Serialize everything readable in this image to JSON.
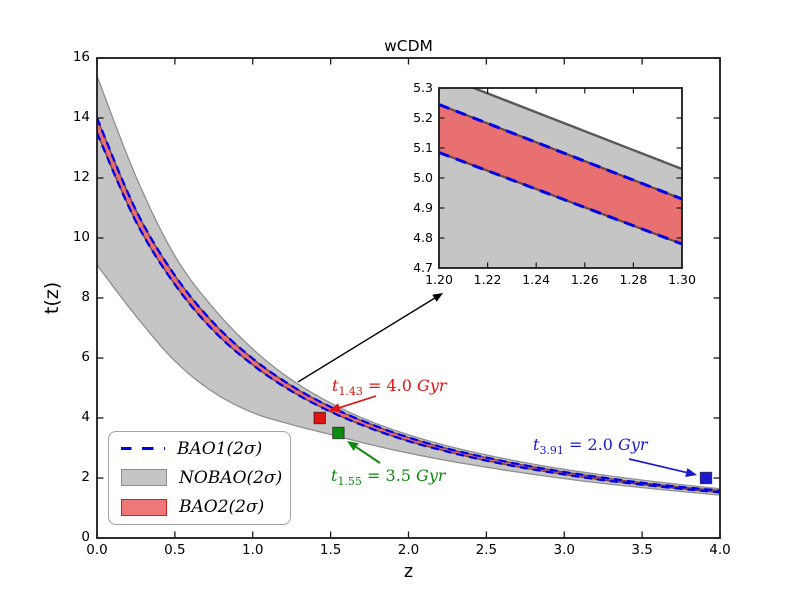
{
  "figure": {
    "title": "wCDM"
  },
  "axes": {
    "xlabel": "z",
    "ylabel": "t(z)",
    "xlim": [
      0,
      4
    ],
    "ylim": [
      0,
      16
    ],
    "xtick_labels": [
      "0.0",
      "0.5",
      "1.0",
      "1.5",
      "2.0",
      "2.5",
      "3.0",
      "3.5",
      "4.0"
    ],
    "ytick_labels": [
      "0",
      "2",
      "4",
      "6",
      "8",
      "10",
      "12",
      "14",
      "16"
    ]
  },
  "legend": {
    "position": "lower-left",
    "items": [
      {
        "label": "BAO1(2σ)",
        "type": "dashed-line",
        "color": "#0000e8"
      },
      {
        "label": "NOBAO(2σ)",
        "type": "patch",
        "fill": "#c5c5c5",
        "edge": "#8f8f8f"
      },
      {
        "label": "BAO2(2σ)",
        "type": "patch",
        "fill": "#ee7878",
        "edge": "#cc2222"
      }
    ]
  },
  "annotations": {
    "red": {
      "prefix": "t",
      "sub": "1.43",
      "eq": " = 4.0 ",
      "unit": "Gyr",
      "color": "#e11212"
    },
    "green": {
      "prefix": "t",
      "sub": "1.55",
      "eq": " = 3.5 ",
      "unit": "Gyr",
      "color": "#0e8a0e"
    },
    "blue": {
      "prefix": "t",
      "sub": "3.91",
      "eq": " = 2.0 ",
      "unit": "Gyr",
      "color": "#1a1acc"
    }
  },
  "chart_data": {
    "type": "line",
    "title": "wCDM",
    "xlabel": "z",
    "ylabel": "t(z)",
    "xlim": [
      0,
      4
    ],
    "ylim": [
      0,
      16
    ],
    "grid": false,
    "legend_position": "lower-left",
    "x": [
      0,
      0.25,
      0.5,
      0.75,
      1.0,
      1.25,
      1.5,
      1.75,
      2.0,
      2.25,
      2.5,
      2.75,
      3.0,
      3.25,
      3.5,
      3.75,
      4.0
    ],
    "series": [
      {
        "name": "NOBAO(2σ) upper bound",
        "band": "NOBAO",
        "edge": "upper",
        "values": [
          15.4,
          12.05,
          9.4,
          7.65,
          6.3,
          5.27,
          4.5,
          3.9,
          3.44,
          3.07,
          2.77,
          2.51,
          2.29,
          2.1,
          1.93,
          1.78,
          1.64
        ]
      },
      {
        "name": "NOBAO(2σ) lower bound",
        "band": "NOBAO",
        "edge": "lower",
        "values": [
          9.1,
          7.4,
          5.9,
          4.85,
          4.18,
          3.78,
          3.45,
          3.12,
          2.83,
          2.58,
          2.36,
          2.16,
          1.98,
          1.82,
          1.68,
          1.55,
          1.43
        ]
      },
      {
        "name": "BAO1/BAO2(2σ) upper bound",
        "band": "BAO",
        "edge": "upper",
        "values": [
          14.0,
          10.93,
          8.75,
          7.16,
          5.98,
          5.07,
          4.37,
          3.81,
          3.35,
          2.98,
          2.68,
          2.42,
          2.2,
          2.01,
          1.84,
          1.7,
          1.58
        ]
      },
      {
        "name": "BAO1/BAO2(2σ) lower bound",
        "band": "BAO",
        "edge": "lower",
        "values": [
          13.5,
          10.55,
          8.45,
          6.9,
          5.77,
          4.89,
          4.21,
          3.67,
          3.23,
          2.88,
          2.58,
          2.33,
          2.12,
          1.93,
          1.78,
          1.64,
          1.52
        ]
      }
    ],
    "points": [
      {
        "name": "t(1.43)",
        "z": 1.43,
        "t": 4.0,
        "label": "t_1.43 = 4.0 Gyr",
        "color": "#e11212"
      },
      {
        "name": "t(1.55)",
        "z": 1.55,
        "t": 3.5,
        "label": "t_1.55 = 3.5 Gyr",
        "color": "#0e8a0e"
      },
      {
        "name": "t(3.91)",
        "z": 3.91,
        "t": 2.0,
        "label": "t_3.91 = 2.0 Gyr",
        "color": "#1a1acc"
      }
    ],
    "inset": {
      "xlim": [
        1.2,
        1.3
      ],
      "ylim": [
        4.7,
        5.3
      ],
      "xtick_labels": [
        "1.20",
        "1.22",
        "1.24",
        "1.26",
        "1.28",
        "1.30"
      ],
      "ytick_labels": [
        "4.7",
        "4.8",
        "4.9",
        "5.0",
        "5.1",
        "5.2",
        "5.3"
      ],
      "lines": {
        "nobao_upper": {
          "x": [
            1.2,
            1.3
          ],
          "y": [
            5.345,
            5.03
          ]
        },
        "bao_upper": {
          "x": [
            1.2,
            1.3
          ],
          "y": [
            5.245,
            4.93
          ]
        },
        "bao_lower": {
          "x": [
            1.2,
            1.3
          ],
          "y": [
            5.085,
            4.78
          ]
        }
      }
    },
    "colors": {
      "bao1_line": "#0000e8",
      "nobao_fill": "#c5c5c5",
      "nobao_edge": "#8f8f8f",
      "bao2_fill": "#e97070",
      "bao2_edge": "#7a4343",
      "axes": "#1a1a1a"
    }
  }
}
